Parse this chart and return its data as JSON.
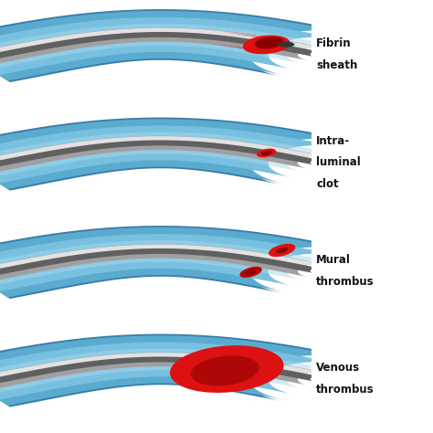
{
  "background_color": "#ffffff",
  "vessel_outer_color": "#5aabcf",
  "vessel_mid_color": "#78c0e0",
  "vessel_lumen_color": "#a8d8ed",
  "vessel_dark_color": "#3a7ea8",
  "catheter_outer_color": "#a0a0a0",
  "catheter_mid_color": "#d0d0d0",
  "catheter_hi_color": "#eeeeee",
  "catheter_lumen_color": "#606060",
  "thrombus_bright": "#dd1111",
  "thrombus_mid": "#bb0000",
  "thrombus_dark": "#880000",
  "label_texts": [
    "Fibrin\nsheath",
    "Intra-\nluminal\nclot",
    "Mural\nthrombus",
    "Venous\nthrombus"
  ],
  "figsize": [
    4.74,
    4.74
  ],
  "dpi": 100
}
